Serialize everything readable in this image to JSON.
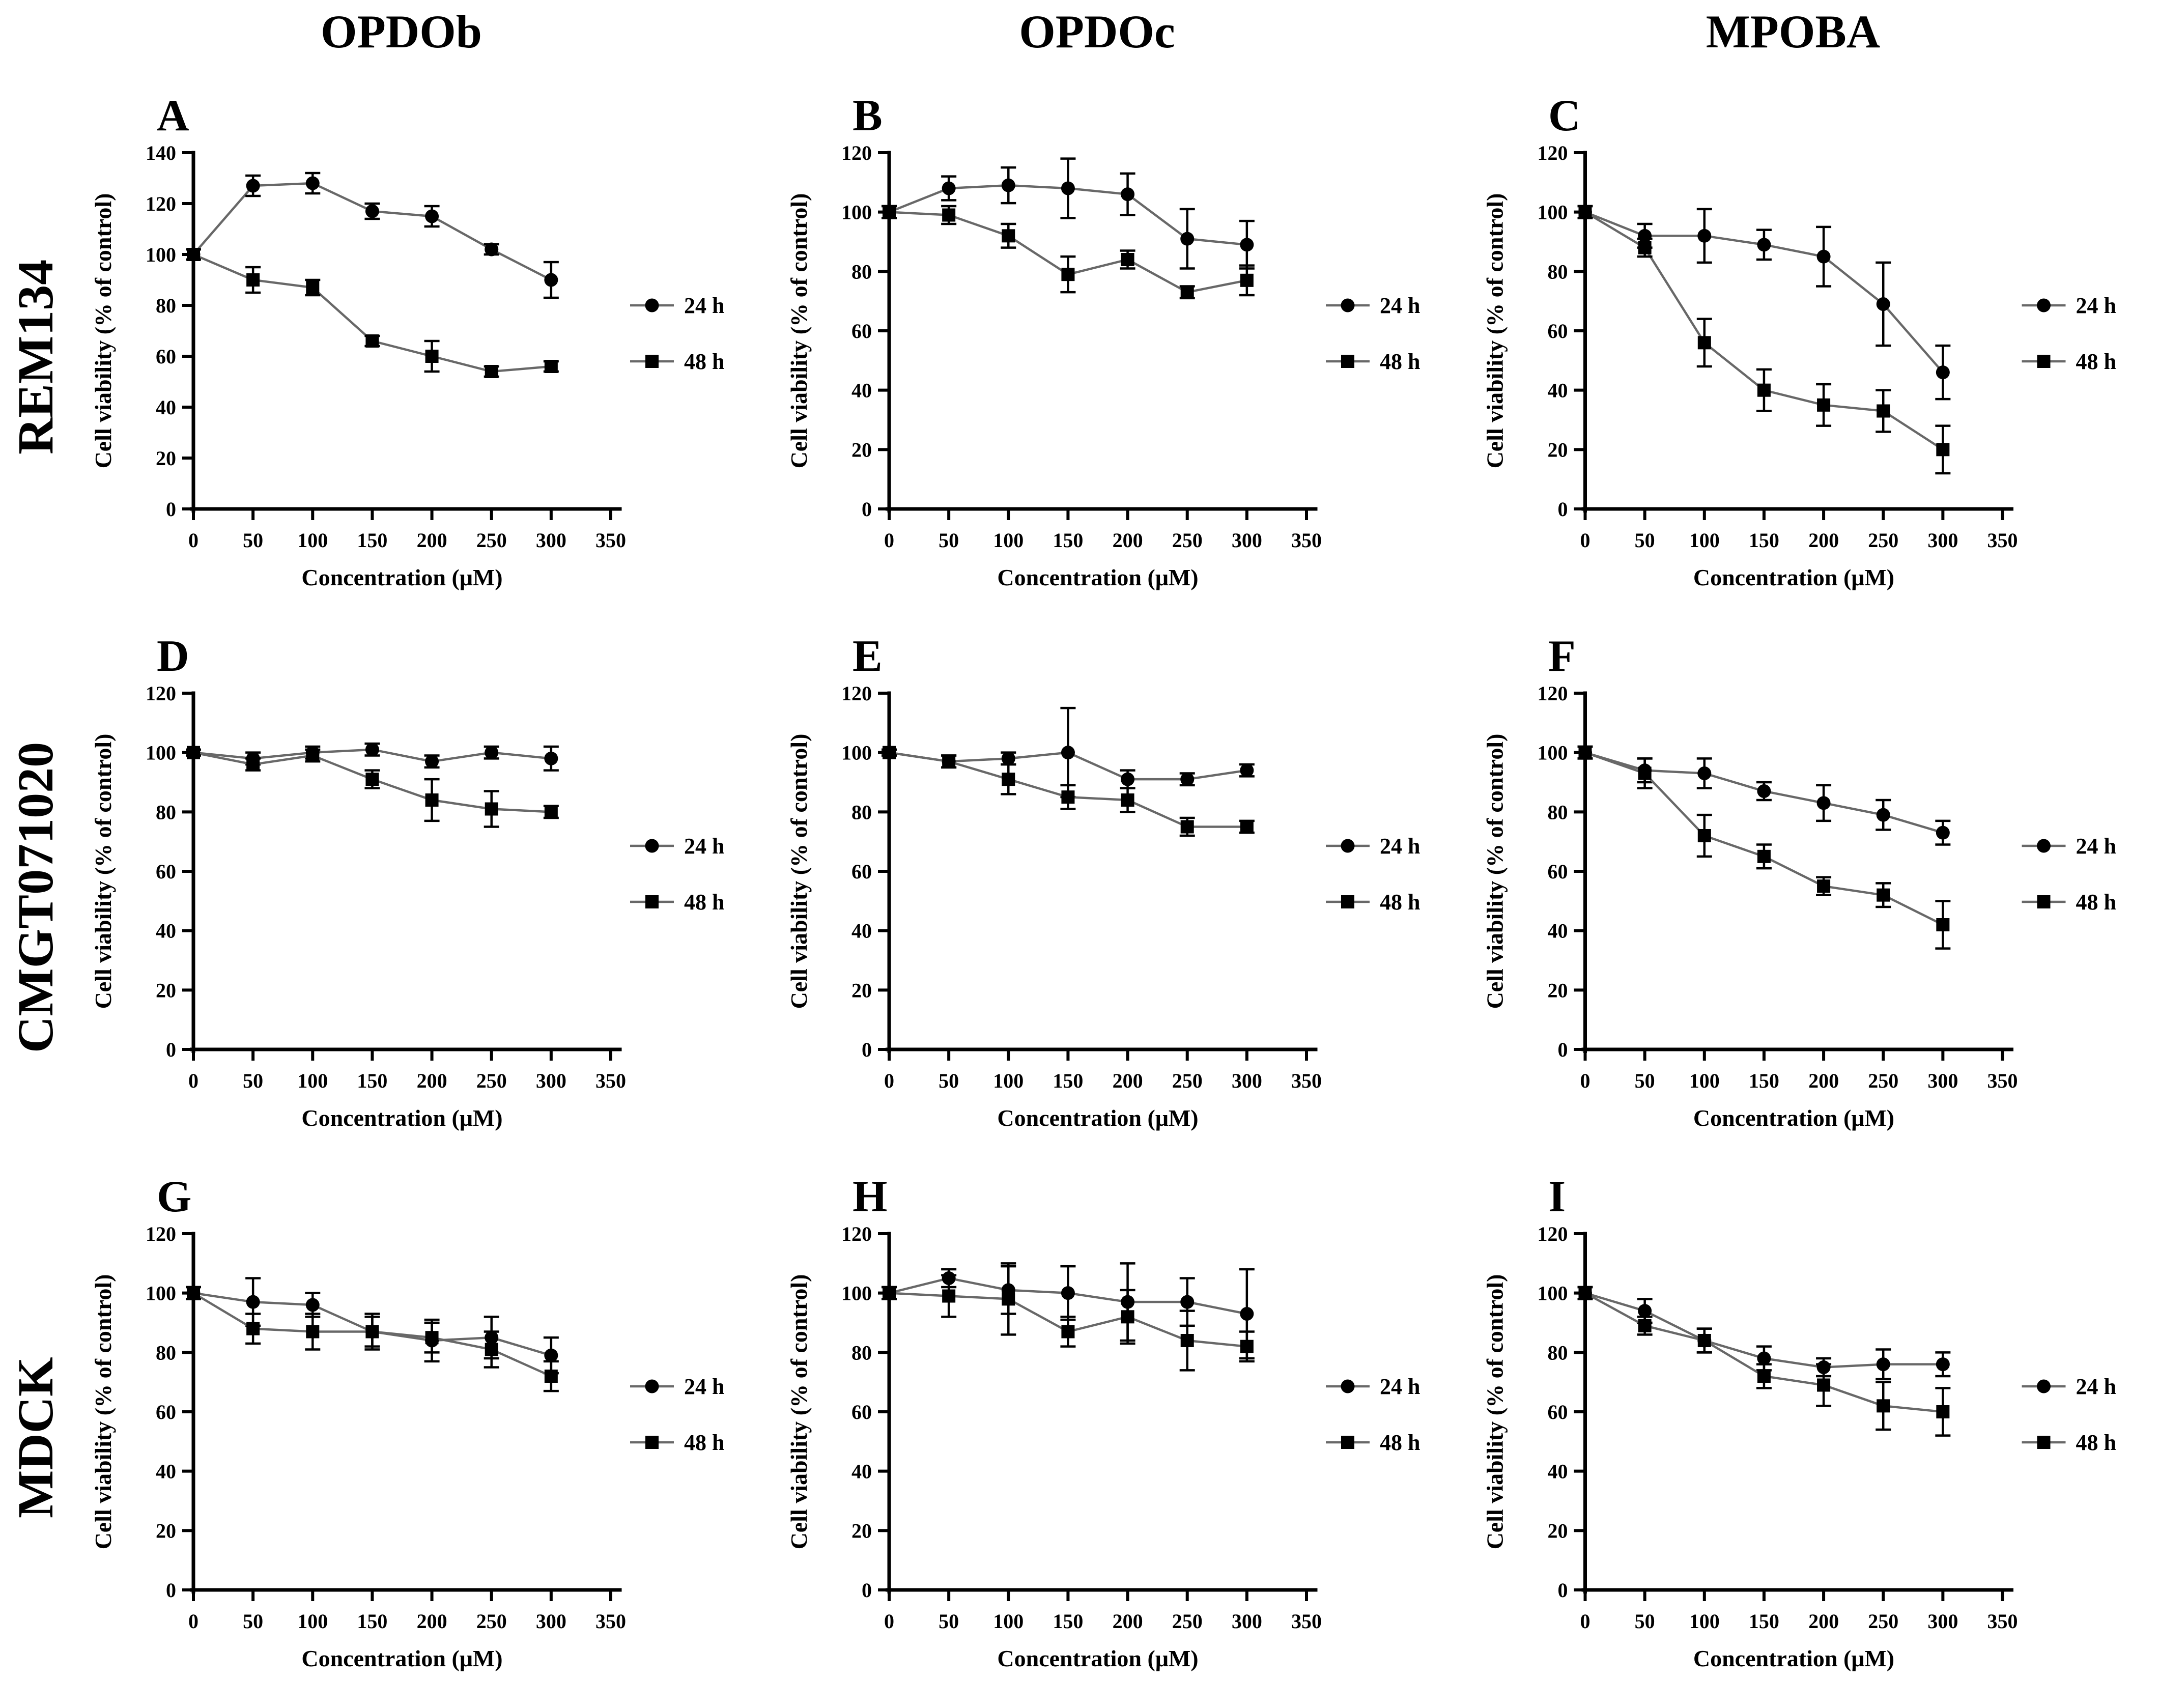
{
  "figure": {
    "columns": [
      "OPDOb",
      "OPDOc",
      "MPOBA"
    ],
    "rows": [
      "REM134",
      "CMGT071020",
      "MDCK"
    ],
    "xlabel": "Concentration (μM)",
    "ylabel": "Cell viability (% of control)",
    "legend": [
      "24 h",
      "48 h"
    ],
    "colors": {
      "marker": "#000000",
      "line": "#686868",
      "error_bar": "#000000",
      "axis": "#000000",
      "background": "#ffffff"
    }
  },
  "chart_data": [
    {
      "panel": "A",
      "cell_line": "REM134",
      "compound": "OPDOb",
      "type": "line",
      "x": [
        0,
        50,
        100,
        150,
        200,
        250,
        300
      ],
      "xlim": [
        0,
        350
      ],
      "ylim": [
        0,
        140
      ],
      "ytick_step": 20,
      "xlabel": "Concentration (μM)",
      "ylabel": "Cell viability (% of control)",
      "series": [
        {
          "name": "24 h",
          "marker": "circle",
          "values": [
            100,
            127,
            128,
            117,
            115,
            102,
            90
          ],
          "errors": [
            2,
            4,
            4,
            3,
            4,
            2,
            7
          ]
        },
        {
          "name": "48 h",
          "marker": "square",
          "values": [
            100,
            90,
            87,
            66,
            60,
            54,
            56
          ],
          "errors": [
            2,
            5,
            3,
            2,
            6,
            2,
            2
          ]
        }
      ]
    },
    {
      "panel": "B",
      "cell_line": "REM134",
      "compound": "OPDOc",
      "type": "line",
      "x": [
        0,
        50,
        100,
        150,
        200,
        250,
        300
      ],
      "xlim": [
        0,
        350
      ],
      "ylim": [
        0,
        120
      ],
      "ytick_step": 20,
      "xlabel": "Concentration (μM)",
      "ylabel": "Cell viability (% of control)",
      "series": [
        {
          "name": "24 h",
          "marker": "circle",
          "values": [
            100,
            108,
            109,
            108,
            106,
            91,
            89
          ],
          "errors": [
            2,
            4,
            6,
            10,
            7,
            10,
            8
          ]
        },
        {
          "name": "48 h",
          "marker": "square",
          "values": [
            100,
            99,
            92,
            79,
            84,
            73,
            77
          ],
          "errors": [
            2,
            3,
            4,
            6,
            3,
            2,
            5
          ]
        }
      ]
    },
    {
      "panel": "C",
      "cell_line": "REM134",
      "compound": "MPOBA",
      "type": "line",
      "x": [
        0,
        50,
        100,
        150,
        200,
        250,
        300
      ],
      "xlim": [
        0,
        350
      ],
      "ylim": [
        0,
        120
      ],
      "ytick_step": 20,
      "xlabel": "Concentration (μM)",
      "ylabel": "Cell viability (% of control)",
      "series": [
        {
          "name": "24 h",
          "marker": "circle",
          "values": [
            100,
            92,
            92,
            89,
            85,
            69,
            46
          ],
          "errors": [
            2,
            4,
            9,
            5,
            10,
            14,
            9
          ]
        },
        {
          "name": "48 h",
          "marker": "square",
          "values": [
            100,
            88,
            56,
            40,
            35,
            33,
            20
          ],
          "errors": [
            2,
            3,
            8,
            7,
            7,
            7,
            8
          ]
        }
      ]
    },
    {
      "panel": "D",
      "cell_line": "CMGT071020",
      "compound": "OPDOb",
      "type": "line",
      "x": [
        0,
        50,
        100,
        150,
        200,
        250,
        300
      ],
      "xlim": [
        0,
        350
      ],
      "ylim": [
        0,
        120
      ],
      "ytick_step": 20,
      "xlabel": "Concentration (μM)",
      "ylabel": "Cell viability (% of control)",
      "series": [
        {
          "name": "24 h",
          "marker": "circle",
          "values": [
            100,
            98,
            100,
            101,
            97,
            100,
            98
          ],
          "errors": [
            1,
            2,
            2,
            2,
            2,
            2,
            4
          ]
        },
        {
          "name": "48 h",
          "marker": "square",
          "values": [
            100,
            96,
            99,
            91,
            84,
            81,
            80
          ],
          "errors": [
            1,
            2,
            2,
            3,
            7,
            6,
            2
          ]
        }
      ]
    },
    {
      "panel": "E",
      "cell_line": "CMGT071020",
      "compound": "OPDOc",
      "type": "line",
      "x": [
        0,
        50,
        100,
        150,
        200,
        250,
        300
      ],
      "xlim": [
        0,
        350
      ],
      "ylim": [
        0,
        120
      ],
      "ytick_step": 20,
      "xlabel": "Concentration (μM)",
      "ylabel": "Cell viability (% of control)",
      "series": [
        {
          "name": "24 h",
          "marker": "circle",
          "values": [
            100,
            97,
            98,
            100,
            91,
            91,
            94
          ],
          "errors": [
            1,
            2,
            2,
            15,
            3,
            2,
            2
          ]
        },
        {
          "name": "48 h",
          "marker": "square",
          "values": [
            100,
            97,
            91,
            85,
            84,
            75,
            75
          ],
          "errors": [
            1,
            2,
            5,
            4,
            4,
            3,
            2
          ]
        }
      ]
    },
    {
      "panel": "F",
      "cell_line": "CMGT071020",
      "compound": "MPOBA",
      "type": "line",
      "x": [
        0,
        50,
        100,
        150,
        200,
        250,
        300
      ],
      "xlim": [
        0,
        350
      ],
      "ylim": [
        0,
        120
      ],
      "ytick_step": 20,
      "xlabel": "Concentration (μM)",
      "ylabel": "Cell viability (% of control)",
      "series": [
        {
          "name": "24 h",
          "marker": "circle",
          "values": [
            100,
            94,
            93,
            87,
            83,
            79,
            73
          ],
          "errors": [
            2,
            4,
            5,
            3,
            6,
            5,
            4
          ]
        },
        {
          "name": "48 h",
          "marker": "square",
          "values": [
            100,
            93,
            72,
            65,
            55,
            52,
            42
          ],
          "errors": [
            2,
            5,
            7,
            4,
            3,
            4,
            8
          ]
        }
      ]
    },
    {
      "panel": "G",
      "cell_line": "MDCK",
      "compound": "OPDOb",
      "type": "line",
      "x": [
        0,
        50,
        100,
        150,
        200,
        250,
        300
      ],
      "xlim": [
        0,
        350
      ],
      "ylim": [
        0,
        120
      ],
      "ytick_step": 20,
      "xlabel": "Concentration (μM)",
      "ylabel": "Cell viability (% of control)",
      "series": [
        {
          "name": "24 h",
          "marker": "circle",
          "values": [
            100,
            97,
            96,
            87,
            84,
            85,
            79
          ],
          "errors": [
            2,
            8,
            4,
            6,
            7,
            7,
            6
          ]
        },
        {
          "name": "48 h",
          "marker": "square",
          "values": [
            100,
            88,
            87,
            87,
            85,
            81,
            72
          ],
          "errors": [
            2,
            5,
            6,
            5,
            5,
            6,
            5
          ]
        }
      ]
    },
    {
      "panel": "H",
      "cell_line": "MDCK",
      "compound": "OPDOc",
      "type": "line",
      "x": [
        0,
        50,
        100,
        150,
        200,
        250,
        300
      ],
      "xlim": [
        0,
        350
      ],
      "ylim": [
        0,
        120
      ],
      "ytick_step": 20,
      "xlabel": "Concentration (μM)",
      "ylabel": "Cell viability (% of control)",
      "series": [
        {
          "name": "24 h",
          "marker": "circle",
          "values": [
            100,
            105,
            101,
            100,
            97,
            97,
            93
          ],
          "errors": [
            2,
            3,
            8,
            9,
            13,
            8,
            15
          ]
        },
        {
          "name": "48 h",
          "marker": "square",
          "values": [
            100,
            99,
            98,
            87,
            92,
            84,
            82
          ],
          "errors": [
            2,
            7,
            12,
            5,
            9,
            10,
            5
          ]
        }
      ]
    },
    {
      "panel": "I",
      "cell_line": "MDCK",
      "compound": "MPOBA",
      "type": "line",
      "x": [
        0,
        50,
        100,
        150,
        200,
        250,
        300
      ],
      "xlim": [
        0,
        350
      ],
      "ylim": [
        0,
        120
      ],
      "ytick_step": 20,
      "xlabel": "Concentration (μM)",
      "ylabel": "Cell viability (% of control)",
      "series": [
        {
          "name": "24 h",
          "marker": "circle",
          "values": [
            100,
            94,
            84,
            78,
            75,
            76,
            76
          ],
          "errors": [
            2,
            4,
            4,
            4,
            3,
            5,
            4
          ]
        },
        {
          "name": "48 h",
          "marker": "square",
          "values": [
            100,
            89,
            84,
            72,
            69,
            62,
            60
          ],
          "errors": [
            2,
            3,
            4,
            4,
            7,
            8,
            8
          ]
        }
      ]
    }
  ]
}
